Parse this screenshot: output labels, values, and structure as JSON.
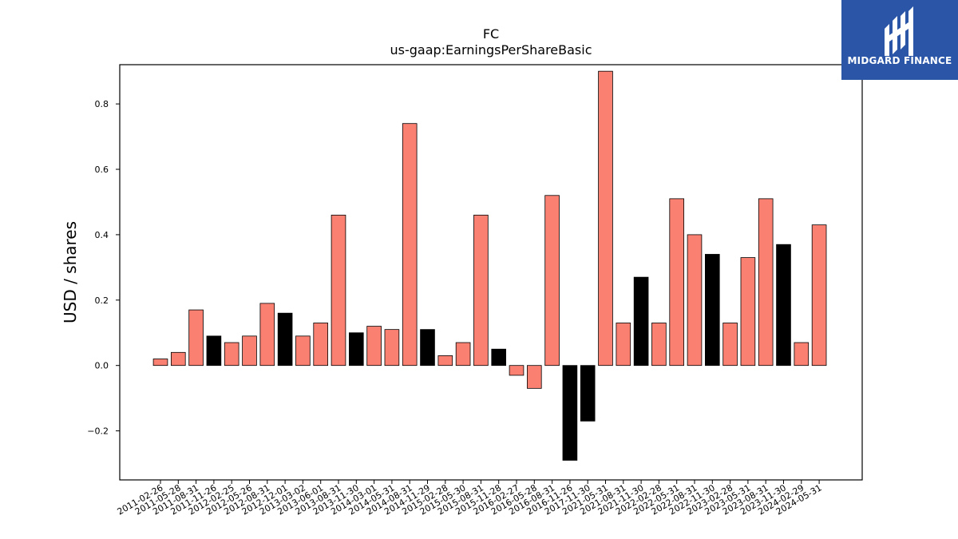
{
  "chart_data": {
    "type": "bar",
    "title": "FC",
    "subtitle": "us-gaap:EarningsPerShareBasic",
    "ylabel": "USD / shares",
    "xlabel": "",
    "ylim": [
      -0.35,
      0.92
    ],
    "yticks": [
      -0.2,
      0.0,
      0.2,
      0.4,
      0.6,
      0.8
    ],
    "grid": false,
    "colors": {
      "default": "#fa8072",
      "highlight": "#000000",
      "edge": "#000000"
    },
    "categories": [
      "2011-02-26",
      "2011-05-28",
      "2011-08-31",
      "2011-11-26",
      "2012-02-25",
      "2012-05-26",
      "2012-08-31",
      "2012-12-01",
      "2013-03-02",
      "2013-06-01",
      "2013-08-31",
      "2013-11-30",
      "2014-03-01",
      "2014-05-31",
      "2014-08-31",
      "2014-11-29",
      "2015-02-28",
      "2015-05-30",
      "2015-08-31",
      "2015-11-28",
      "2016-02-27",
      "2016-05-28",
      "2016-08-31",
      "2016-11-26",
      "2017-11-30",
      "2021-05-31",
      "2021-08-31",
      "2021-11-30",
      "2022-02-28",
      "2022-05-31",
      "2022-08-31",
      "2022-11-30",
      "2023-02-28",
      "2023-05-31",
      "2023-08-31",
      "2023-11-30",
      "2024-02-29",
      "2024-05-31"
    ],
    "values": [
      0.02,
      0.04,
      0.17,
      0.09,
      0.07,
      0.09,
      0.19,
      0.16,
      0.09,
      0.13,
      0.46,
      0.1,
      0.12,
      0.11,
      0.74,
      0.11,
      0.03,
      0.07,
      0.46,
      0.05,
      -0.03,
      -0.07,
      0.52,
      -0.29,
      -0.17,
      0.9,
      0.13,
      0.27,
      0.13,
      0.51,
      0.4,
      0.34,
      0.13,
      0.33,
      0.51,
      0.37,
      0.07,
      0.43
    ],
    "highlight": [
      false,
      false,
      false,
      true,
      false,
      false,
      false,
      true,
      false,
      false,
      false,
      true,
      false,
      false,
      false,
      true,
      false,
      false,
      false,
      true,
      false,
      false,
      false,
      true,
      true,
      false,
      false,
      true,
      false,
      false,
      false,
      true,
      false,
      false,
      false,
      true,
      false,
      false
    ]
  },
  "logo": {
    "text": "MIDGARD FINANCE",
    "background": "#2b56a8"
  }
}
